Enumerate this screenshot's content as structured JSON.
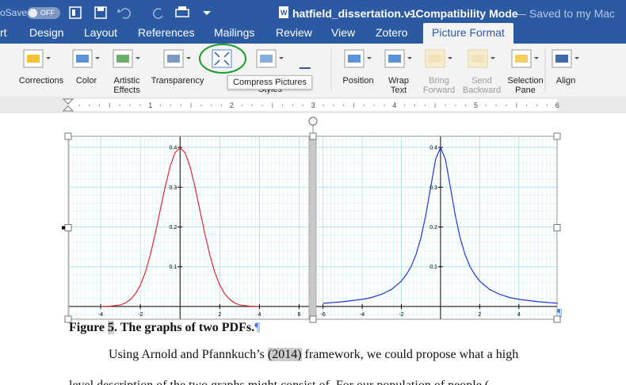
{
  "titlebar": {
    "autosave": "oSave",
    "toggle": "OFF",
    "document": "hatfield_dissertation.v1",
    "mode": "- Compatibility Mode",
    "saved": "— Saved to my Mac"
  },
  "tabs": [
    "rt",
    "Design",
    "Layout",
    "References",
    "Mailings",
    "Review",
    "View",
    "Zotero",
    "Picture Format"
  ],
  "active_tab": "Picture Format",
  "ribbon": [
    {
      "label": "Corrections"
    },
    {
      "label": "Color"
    },
    {
      "label": "Artistic\nEffects"
    },
    {
      "label": "Transparency"
    },
    {
      "label": "Styles"
    },
    {
      "label": "Position"
    },
    {
      "label": "Wrap\nText"
    },
    {
      "label": "Bring\nForward",
      "disabled": true
    },
    {
      "label": "Send\nBackward",
      "disabled": true
    },
    {
      "label": "Selection\nPane"
    },
    {
      "label": "Align"
    }
  ],
  "tooltip": "Compress Pictures",
  "ruler": [
    1,
    2,
    3,
    4,
    5,
    6
  ],
  "caption": {
    "prefix": "Figure ",
    "number": "5",
    "rest": ". The graphs of two PDFs.",
    "mark": "¶"
  },
  "paragraph": {
    "before": "Using Arnold and Pfannkuch’s ",
    "citation": "(2014)",
    "after": " framework, we could propose what a high",
    "line2": "level description of the two graphs might consist of. For our population of people ("
  },
  "picture_mark": "¶",
  "chart_data": [
    {
      "type": "line",
      "x": [
        -4,
        -3.5,
        -3,
        -2.75,
        -2.5,
        -2.25,
        -2,
        -1.75,
        -1.5,
        -1.25,
        -1,
        -0.75,
        -0.5,
        -0.25,
        0,
        0.25,
        0.5,
        0.75,
        1,
        1.25,
        1.5,
        1.75,
        2,
        2.25,
        2.5,
        2.75,
        3,
        3.5,
        4
      ],
      "series": [
        {
          "color": "#e0262b",
          "values": [
            0,
            0.001,
            0.004,
            0.009,
            0.018,
            0.032,
            0.054,
            0.086,
            0.13,
            0.183,
            0.242,
            0.301,
            0.352,
            0.387,
            0.399,
            0.387,
            0.352,
            0.301,
            0.242,
            0.183,
            0.13,
            0.086,
            0.054,
            0.032,
            0.018,
            0.009,
            0.004,
            0.001,
            0
          ]
        }
      ],
      "xlim": [
        -5.6,
        6.5
      ],
      "ylim": [
        -0.032,
        0.428
      ],
      "xticks": [
        -4,
        -2,
        2,
        4,
        6
      ],
      "yticks": [
        0.1,
        0.2,
        0.3,
        0.4
      ],
      "grid": true
    },
    {
      "type": "line",
      "x": [
        -6,
        -5,
        -4,
        -3.5,
        -3,
        -2.5,
        -2,
        -1.75,
        -1.5,
        -1.25,
        -1,
        -0.75,
        -0.5,
        -0.25,
        0,
        0.25,
        0.5,
        0.75,
        1,
        1.25,
        1.5,
        1.75,
        2,
        2.5,
        3,
        3.5,
        4,
        5,
        6
      ],
      "series": [
        {
          "color": "#2436d8",
          "values": [
            0.008,
            0.012,
            0.018,
            0.023,
            0.031,
            0.043,
            0.064,
            0.08,
            0.101,
            0.131,
            0.173,
            0.23,
            0.301,
            0.37,
            0.4,
            0.37,
            0.301,
            0.23,
            0.173,
            0.131,
            0.101,
            0.08,
            0.064,
            0.043,
            0.031,
            0.023,
            0.018,
            0.012,
            0.008
          ]
        }
      ],
      "xlim": [
        -6.35,
        5.95
      ],
      "ylim": [
        -0.032,
        0.428
      ],
      "xticks": [
        -6,
        -4,
        -2,
        2,
        4
      ],
      "yticks": [
        0.1,
        0.2,
        0.3,
        0.4
      ],
      "grid": true
    }
  ]
}
